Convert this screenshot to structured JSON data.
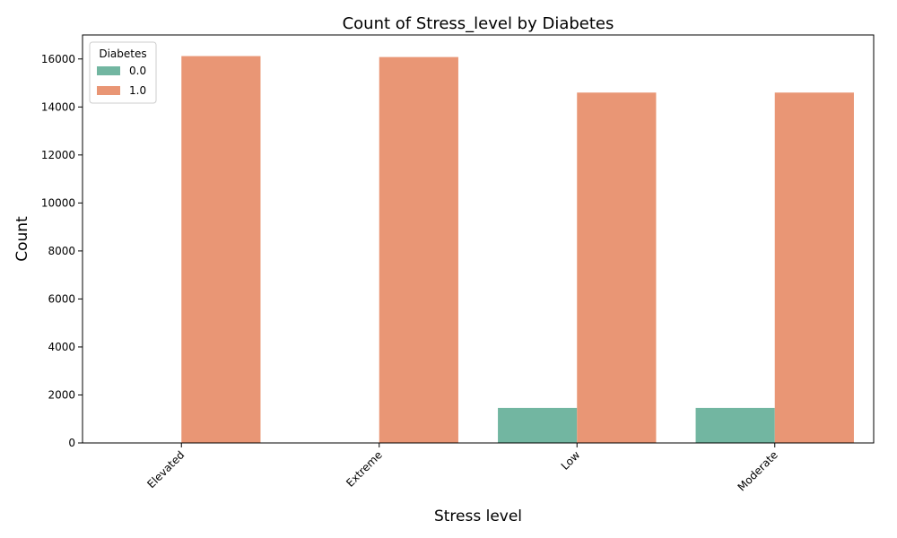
{
  "chart_data": {
    "type": "bar",
    "title": "Count of Stress_level by Diabetes",
    "xlabel": "Stress level",
    "ylabel": "Count",
    "categories": [
      "Elevated",
      "Extreme",
      "Low",
      "Moderate"
    ],
    "series": [
      {
        "name": "0.0",
        "color": "#72b6a1",
        "values": [
          0,
          0,
          1460,
          1460
        ]
      },
      {
        "name": "1.0",
        "color": "#e99675",
        "values": [
          16120,
          16080,
          14600,
          14600
        ]
      }
    ],
    "ylim": [
      0,
      17000
    ],
    "yticks": [
      0,
      2000,
      4000,
      6000,
      8000,
      10000,
      12000,
      14000,
      16000
    ],
    "grid": false,
    "legend": {
      "title": "Diabetes",
      "position": "top-left"
    }
  }
}
